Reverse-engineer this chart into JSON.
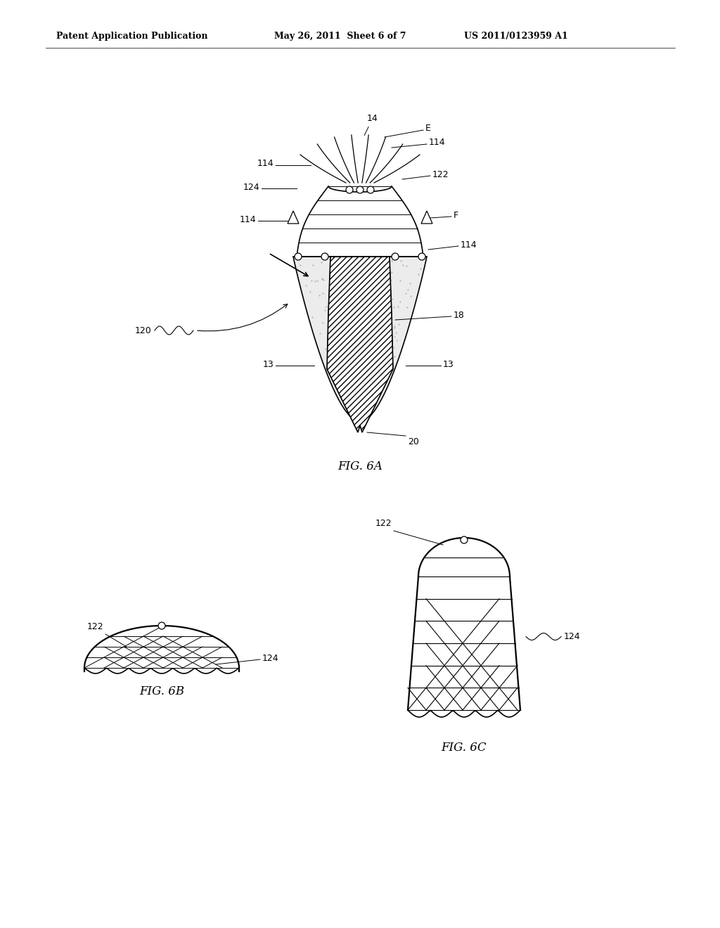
{
  "bg_color": "#ffffff",
  "header_text": "Patent Application Publication",
  "header_date": "May 26, 2011  Sheet 6 of 7",
  "header_patent": "US 2011/0123959 A1",
  "fig6a_label": "FIG. 6A",
  "fig6b_label": "FIG. 6B",
  "fig6c_label": "FIG. 6C",
  "label_fs": 9,
  "header_fs": 9
}
